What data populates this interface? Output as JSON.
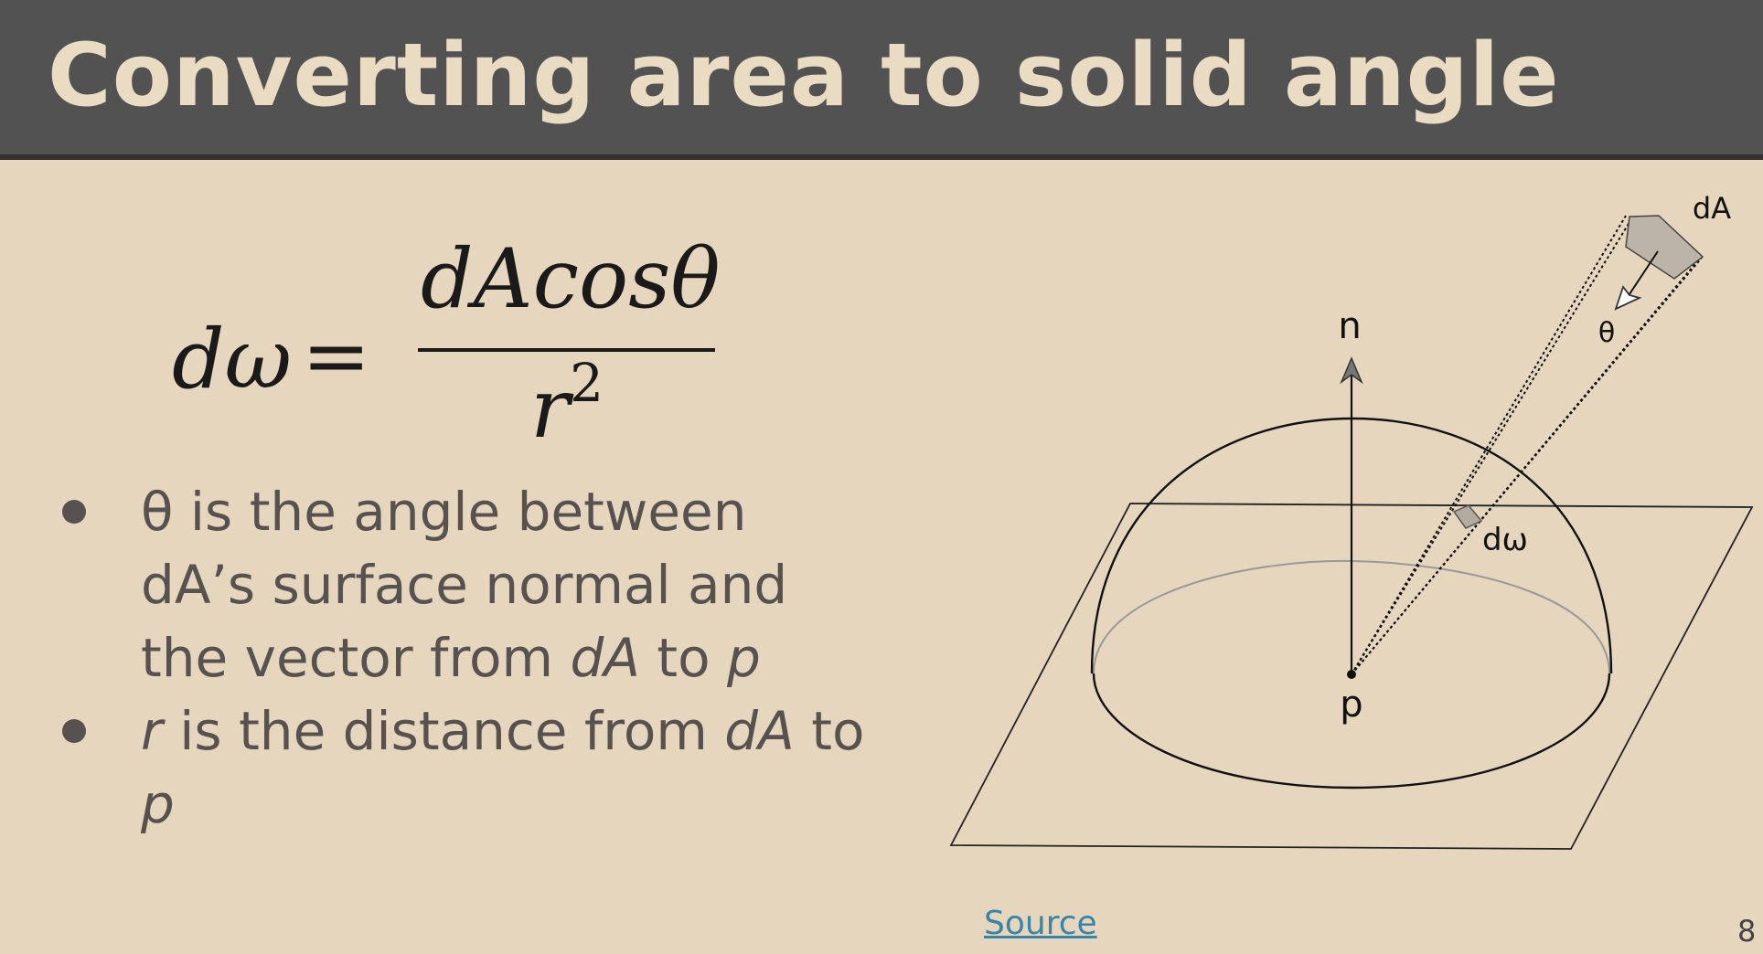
{
  "slide": {
    "title": "Converting area to solid angle",
    "page_number": "8",
    "source_label": "Source"
  },
  "formula": {
    "lhs": "dω",
    "equals": "=",
    "numerator": "dAcosθ",
    "denominator_base": "r",
    "denominator_exponent": "2"
  },
  "bullets": [
    {
      "parts": [
        "θ is the angle between dA’s surface normal and the vector from ",
        "dA",
        " to ",
        "p"
      ]
    },
    {
      "parts": [
        "r",
        " is the distance from ",
        "dA",
        " to ",
        "p"
      ]
    }
  ],
  "diagram": {
    "label_normal": "n",
    "label_point": "p",
    "label_area": "dA",
    "label_theta": "θ",
    "label_solid_angle": "dω"
  }
}
